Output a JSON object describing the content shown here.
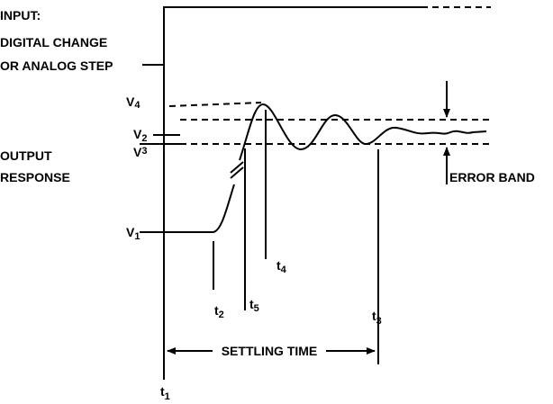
{
  "input_label": {
    "line1": "INPUT:",
    "line2": "DIGITAL CHANGE",
    "line3": "OR ANALOG STEP"
  },
  "output_label": {
    "line1": "OUTPUT",
    "line2": "RESPONSE"
  },
  "levels": [
    {
      "base": "V",
      "sub": "4"
    },
    {
      "base": "V",
      "sub": "2"
    },
    {
      "base": "V",
      "sub": "3"
    },
    {
      "base": "V",
      "sub": "1"
    }
  ],
  "times": [
    {
      "base": "t",
      "sub": "2"
    },
    {
      "base": "t",
      "sub": "5"
    },
    {
      "base": "t",
      "sub": "4"
    },
    {
      "base": "t",
      "sub": "3"
    },
    {
      "base": "t",
      "sub": "1"
    }
  ],
  "error_band": "ERROR BAND",
  "settling_time": "SETTLING TIME"
}
